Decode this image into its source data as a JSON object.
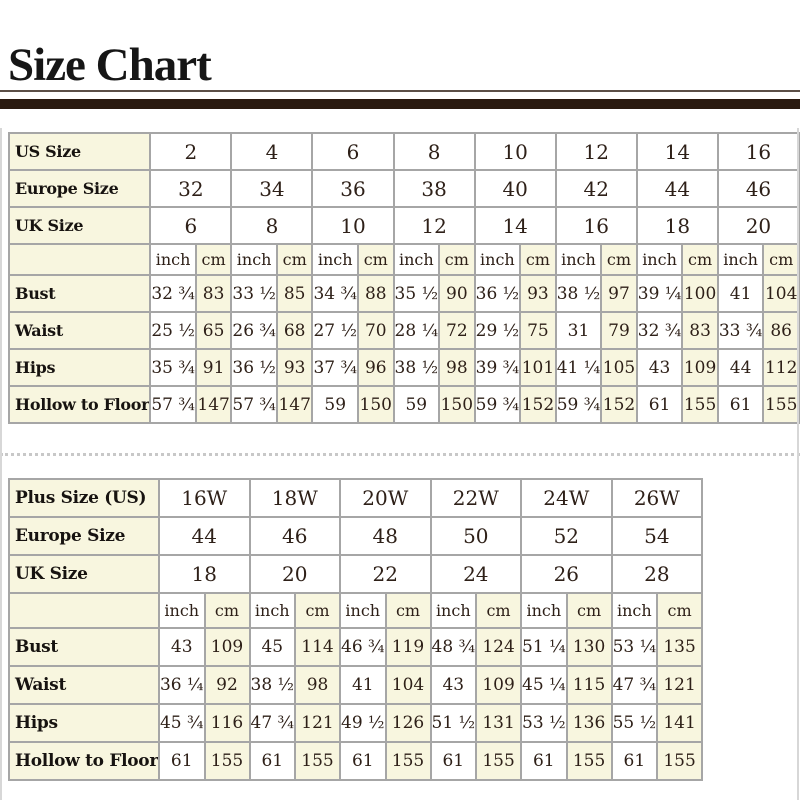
{
  "title": "Size Chart",
  "unit_labels": {
    "inch": "inch",
    "cm": "cm"
  },
  "standard_table": {
    "size_rows": [
      {
        "label": "US Size",
        "values": [
          "2",
          "4",
          "6",
          "8",
          "10",
          "12",
          "14",
          "16"
        ]
      },
      {
        "label": "Europe Size",
        "values": [
          "32",
          "34",
          "36",
          "38",
          "40",
          "42",
          "44",
          "46"
        ]
      },
      {
        "label": "UK Size",
        "values": [
          "6",
          "8",
          "10",
          "12",
          "14",
          "16",
          "18",
          "20"
        ]
      }
    ],
    "measurement_rows": [
      {
        "label": "Bust",
        "values": [
          "32 ¾",
          "83",
          "33 ½",
          "85",
          "34 ¾",
          "88",
          "35 ½",
          "90",
          "36 ½",
          "93",
          "38 ½",
          "97",
          "39 ¼",
          "100",
          "41",
          "104"
        ]
      },
      {
        "label": "Waist",
        "values": [
          "25 ½",
          "65",
          "26 ¾",
          "68",
          "27 ½",
          "70",
          "28 ¼",
          "72",
          "29 ½",
          "75",
          "31",
          "79",
          "32 ¾",
          "83",
          "33 ¾",
          "86"
        ]
      },
      {
        "label": "Hips",
        "values": [
          "35 ¾",
          "91",
          "36 ½",
          "93",
          "37 ¾",
          "96",
          "38 ½",
          "98",
          "39 ¾",
          "101",
          "41 ¼",
          "105",
          "43",
          "109",
          "44",
          "112"
        ]
      },
      {
        "label": "Hollow to Floor",
        "values": [
          "57 ¾",
          "147",
          "57 ¾",
          "147",
          "59",
          "150",
          "59",
          "150",
          "59 ¾",
          "152",
          "59 ¾",
          "152",
          "61",
          "155",
          "61",
          "155"
        ]
      }
    ]
  },
  "plus_table": {
    "size_rows": [
      {
        "label": "Plus Size (US)",
        "values": [
          "16W",
          "18W",
          "20W",
          "22W",
          "24W",
          "26W"
        ]
      },
      {
        "label": "Europe Size",
        "values": [
          "44",
          "46",
          "48",
          "50",
          "52",
          "54"
        ]
      },
      {
        "label": "UK Size",
        "values": [
          "18",
          "20",
          "22",
          "24",
          "26",
          "28"
        ]
      }
    ],
    "measurement_rows": [
      {
        "label": "Bust",
        "values": [
          "43",
          "109",
          "45",
          "114",
          "46 ¾",
          "119",
          "48 ¾",
          "124",
          "51 ¼",
          "130",
          "53 ¼",
          "135"
        ]
      },
      {
        "label": "Waist",
        "values": [
          "36 ¼",
          "92",
          "38 ½",
          "98",
          "41",
          "104",
          "43",
          "109",
          "45 ¼",
          "115",
          "47 ¾",
          "121"
        ]
      },
      {
        "label": "Hips",
        "values": [
          "45 ¾",
          "116",
          "47 ¾",
          "121",
          "49 ½",
          "126",
          "51 ½",
          "131",
          "53 ½",
          "136",
          "55 ½",
          "141"
        ]
      },
      {
        "label": "Hollow to Floor",
        "values": [
          "61",
          "155",
          "61",
          "155",
          "61",
          "155",
          "61",
          "155",
          "61",
          "155",
          "61",
          "155"
        ]
      }
    ]
  }
}
